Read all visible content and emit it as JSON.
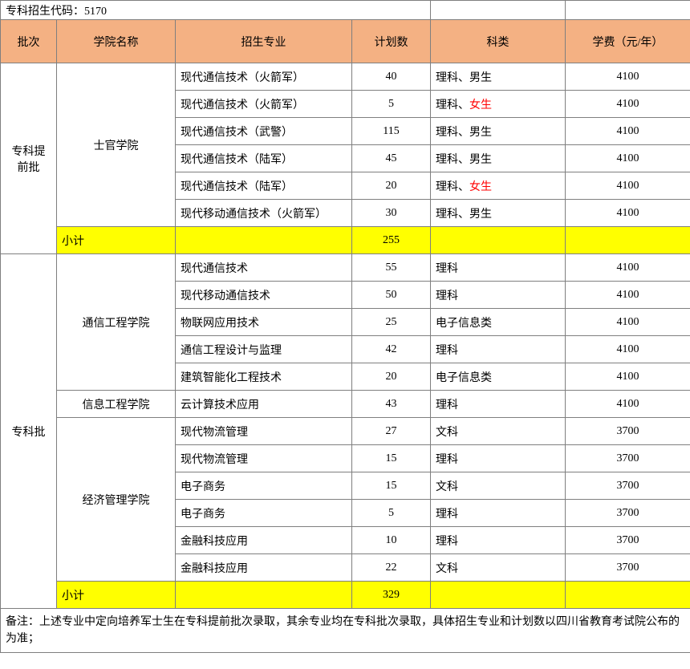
{
  "title": "专科招生代码：5170",
  "headers": {
    "batch": "批次",
    "college": "学院名称",
    "major": "招生专业",
    "count": "计划数",
    "category": "科类",
    "fee": "学费（元/年）"
  },
  "batch1": {
    "label": "专科提前批",
    "college": "士官学院",
    "rows": [
      {
        "major": "现代通信技术（火箭军）",
        "count": "40",
        "cat_pre": "理科、",
        "cat_suf": "男生",
        "cat_red": false,
        "fee": "4100"
      },
      {
        "major": "现代通信技术（火箭军）",
        "count": "5",
        "cat_pre": "理科、",
        "cat_suf": "女生",
        "cat_red": true,
        "fee": "4100"
      },
      {
        "major": "现代通信技术（武警）",
        "count": "115",
        "cat_pre": "理科、",
        "cat_suf": "男生",
        "cat_red": false,
        "fee": "4100"
      },
      {
        "major": "现代通信技术（陆军）",
        "count": "45",
        "cat_pre": "理科、",
        "cat_suf": "男生",
        "cat_red": false,
        "fee": "4100"
      },
      {
        "major": "现代通信技术（陆军）",
        "count": "20",
        "cat_pre": "理科、",
        "cat_suf": "女生",
        "cat_red": true,
        "fee": "4100"
      },
      {
        "major": "现代移动通信技术（火箭军）",
        "count": "30",
        "cat_pre": "理科、",
        "cat_suf": "男生",
        "cat_red": false,
        "fee": "4100"
      }
    ],
    "subtotal_label": "小计",
    "subtotal_count": "255"
  },
  "batch2": {
    "label": "专科批",
    "colleges": {
      "c1": "通信工程学院",
      "c2": "信息工程学院",
      "c3": "经济管理学院"
    },
    "rows": [
      {
        "college_key": "c1",
        "major": "现代通信技术",
        "count": "55",
        "cat": "理科",
        "fee": "4100"
      },
      {
        "college_key": "c1",
        "major": "现代移动通信技术",
        "count": "50",
        "cat": "理科",
        "fee": "4100"
      },
      {
        "college_key": "c1",
        "major": "物联网应用技术",
        "count": "25",
        "cat": "电子信息类",
        "fee": "4100"
      },
      {
        "college_key": "c1",
        "major": "通信工程设计与监理",
        "count": "42",
        "cat": "理科",
        "fee": "4100"
      },
      {
        "college_key": "c1",
        "major": "建筑智能化工程技术",
        "count": "20",
        "cat": "电子信息类",
        "fee": "4100"
      },
      {
        "college_key": "c2",
        "major": "云计算技术应用",
        "count": "43",
        "cat": "理科",
        "fee": "4100"
      },
      {
        "college_key": "c3",
        "major": "现代物流管理",
        "count": "27",
        "cat": "文科",
        "fee": "3700"
      },
      {
        "college_key": "c3",
        "major": "现代物流管理",
        "count": "15",
        "cat": "理科",
        "fee": "3700"
      },
      {
        "college_key": "c3",
        "major": "电子商务",
        "count": "15",
        "cat": "文科",
        "fee": "3700"
      },
      {
        "college_key": "c3",
        "major": "电子商务",
        "count": "5",
        "cat": "理科",
        "fee": "3700"
      },
      {
        "college_key": "c3",
        "major": "金融科技应用",
        "count": "10",
        "cat": "理科",
        "fee": "3700"
      },
      {
        "college_key": "c3",
        "major": "金融科技应用",
        "count": "22",
        "cat": "文科",
        "fee": "3700"
      }
    ],
    "subtotal_label": "小计",
    "subtotal_count": "329"
  },
  "footer": "备注：上述专业中定向培养军士生在专科提前批次录取，其余专业均在专科批次录取，具体招生专业和计划数以四川省教育考试院公布的为准；"
}
